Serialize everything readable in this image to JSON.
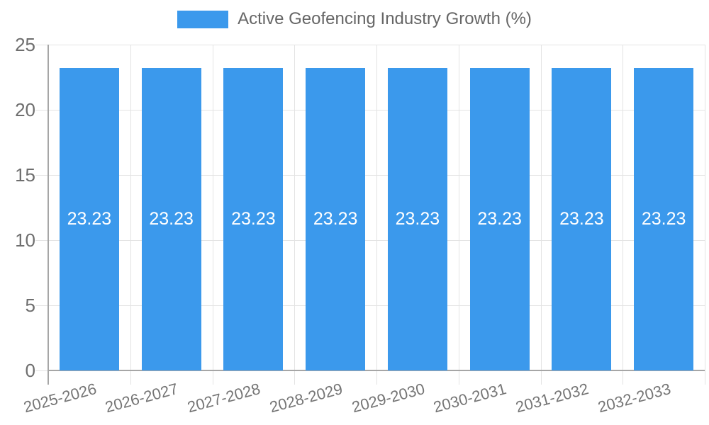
{
  "legend": {
    "label": "Active Geofencing Industry Growth (%)"
  },
  "chart_data": {
    "type": "bar",
    "title": "",
    "xlabel": "",
    "ylabel": "",
    "categories": [
      "2025-2026",
      "2026-2027",
      "2027-2028",
      "2028-2029",
      "2029-2030",
      "2030-2031",
      "2031-2032",
      "2032-2033"
    ],
    "series": [
      {
        "name": "Active Geofencing Industry Growth (%)",
        "values": [
          23.23,
          23.23,
          23.23,
          23.23,
          23.23,
          23.23,
          23.23,
          23.23
        ],
        "color": "#3b99ec"
      }
    ],
    "value_labels": [
      "23.23",
      "23.23",
      "23.23",
      "23.23",
      "23.23",
      "23.23",
      "23.23",
      "23.23"
    ],
    "ylim": [
      0,
      25
    ],
    "yticks": [
      0,
      5,
      10,
      15,
      20,
      25
    ],
    "grid": true,
    "legend_position": "top",
    "x_tick_rotation_deg": -15
  },
  "colors": {
    "bar": "#3b99ec",
    "grid": "#e3e3e3",
    "axis_border": "#a6a6a6",
    "y_tick_label": "#6e6e6e",
    "x_tick_label": "#757575",
    "value_label": "#ffffff",
    "legend_text": "#666666",
    "background": "#ffffff"
  }
}
